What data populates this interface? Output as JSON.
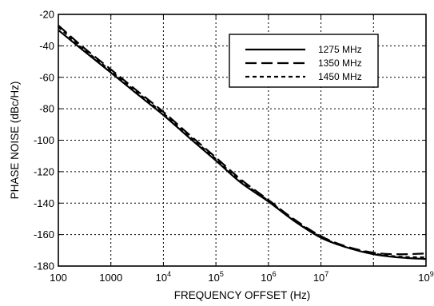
{
  "chart_data": {
    "type": "line",
    "xscale": "log",
    "xlim": [
      100,
      1000000000
    ],
    "ylim": [
      -180,
      -20
    ],
    "grid": true,
    "legend_position": "top-right",
    "xlabel": "FREQUENCY OFFSET (Hz)",
    "ylabel": "PHASE NOISE (dBc/Hz)",
    "x_ticks": [
      {
        "value": 100,
        "base": "100",
        "exp": ""
      },
      {
        "value": 1000,
        "base": "1000",
        "exp": ""
      },
      {
        "value": 10000,
        "base": "10",
        "exp": "4"
      },
      {
        "value": 100000,
        "base": "10",
        "exp": "5"
      },
      {
        "value": 1000000,
        "base": "10",
        "exp": "6"
      },
      {
        "value": 10000000,
        "base": "10",
        "exp": "7"
      },
      {
        "value": 1000000000,
        "base": "10",
        "exp": "9"
      }
    ],
    "y_ticks": [
      {
        "value": -20,
        "label": "-20"
      },
      {
        "value": -40,
        "label": "-40"
      },
      {
        "value": -60,
        "label": "-60"
      },
      {
        "value": -80,
        "label": "-80"
      },
      {
        "value": -100,
        "label": "-100"
      },
      {
        "value": -120,
        "label": "-120"
      },
      {
        "value": -140,
        "label": "-140"
      },
      {
        "value": -160,
        "label": "-160"
      },
      {
        "value": -180,
        "label": "-180"
      }
    ],
    "series": [
      {
        "name": "1275 MHz",
        "style": "solid",
        "x": [
          100,
          300,
          1000,
          3000,
          10000,
          30000,
          100000,
          300000,
          1000000,
          3000000,
          10000000,
          30000000,
          100000000,
          300000000,
          1000000000
        ],
        "y": [
          -30,
          -43,
          -57,
          -70,
          -84,
          -98,
          -113,
          -127,
          -139,
          -151,
          -162,
          -168,
          -172.5,
          -174.5,
          -175.5
        ]
      },
      {
        "name": "1350 MHz",
        "style": "long-dash",
        "x": [
          100,
          300,
          1000,
          3000,
          10000,
          30000,
          100000,
          300000,
          1000000,
          3000000,
          10000000,
          30000000,
          100000000,
          300000000,
          1000000000
        ],
        "y": [
          -27,
          -41,
          -55,
          -68,
          -82,
          -96,
          -111,
          -125,
          -138,
          -150,
          -161,
          -167.5,
          -171.5,
          -172.5,
          -172
        ]
      },
      {
        "name": "1450 MHz",
        "style": "short-dash",
        "x": [
          100,
          300,
          1000,
          3000,
          10000,
          30000,
          100000,
          300000,
          1000000,
          3000000,
          10000000,
          30000000,
          100000000,
          300000000,
          1000000000
        ],
        "y": [
          -28,
          -42,
          -56,
          -69,
          -83,
          -97,
          -112,
          -126,
          -138.5,
          -150.5,
          -161.5,
          -168,
          -172,
          -174,
          -174.5
        ]
      }
    ]
  }
}
